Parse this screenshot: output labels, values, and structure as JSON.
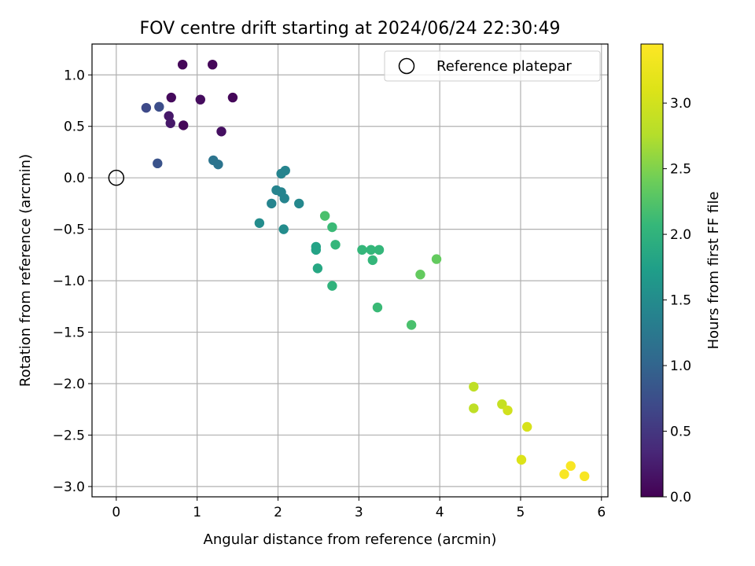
{
  "chart_data": {
    "type": "scatter",
    "title": "FOV centre drift starting at 2024/06/24 22:30:49",
    "xlabel": "Angular distance from reference (arcmin)",
    "ylabel": "Rotation from reference (arcmin)",
    "xlim": [
      -0.3,
      6.08
    ],
    "ylim": [
      -3.1,
      1.3
    ],
    "x_ticks": [
      0,
      1,
      2,
      3,
      4,
      5,
      6
    ],
    "x_tick_labels": [
      "0",
      "1",
      "2",
      "3",
      "4",
      "5",
      "6"
    ],
    "y_ticks": [
      1.0,
      0.5,
      0.0,
      -0.5,
      -1.0,
      -1.5,
      -2.0,
      -2.5,
      -3.0
    ],
    "y_tick_labels": [
      "1.0",
      "0.5",
      "0.0",
      "−0.5",
      "−1.0",
      "−1.5",
      "−2.0",
      "−2.5",
      "−3.0"
    ],
    "grid": true,
    "legend": {
      "location": "upper right",
      "entries": [
        "Reference platepar"
      ]
    },
    "reference_point": {
      "x": 0,
      "y": 0,
      "marker": "open-circle"
    },
    "colorbar": {
      "label": "Hours from first FF file",
      "range": [
        0,
        3.45
      ],
      "colormap": "viridis",
      "ticks": [
        0.0,
        0.5,
        1.0,
        1.5,
        2.0,
        2.5,
        3.0
      ],
      "tick_labels": [
        "0.0",
        "0.5",
        "1.0",
        "1.5",
        "2.0",
        "2.5",
        "3.0"
      ]
    },
    "series": [
      {
        "points": [
          {
            "x": 0.82,
            "y": 1.1,
            "c": 0.05
          },
          {
            "x": 1.19,
            "y": 1.1,
            "c": 0.05
          },
          {
            "x": 0.68,
            "y": 0.78,
            "c": 0.08
          },
          {
            "x": 1.04,
            "y": 0.76,
            "c": 0.1
          },
          {
            "x": 1.44,
            "y": 0.78,
            "c": 0.05
          },
          {
            "x": 0.37,
            "y": 0.68,
            "c": 0.7
          },
          {
            "x": 0.53,
            "y": 0.69,
            "c": 0.75
          },
          {
            "x": 0.65,
            "y": 0.6,
            "c": 0.2
          },
          {
            "x": 0.67,
            "y": 0.53,
            "c": 0.2
          },
          {
            "x": 0.83,
            "y": 0.51,
            "c": 0.05
          },
          {
            "x": 1.3,
            "y": 0.45,
            "c": 0.12
          },
          {
            "x": 0.51,
            "y": 0.14,
            "c": 0.8
          },
          {
            "x": 1.2,
            "y": 0.17,
            "c": 1.2
          },
          {
            "x": 1.26,
            "y": 0.13,
            "c": 1.2
          },
          {
            "x": 2.04,
            "y": 0.04,
            "c": 1.4
          },
          {
            "x": 2.09,
            "y": 0.07,
            "c": 1.4
          },
          {
            "x": 1.98,
            "y": -0.12,
            "c": 1.4
          },
          {
            "x": 2.04,
            "y": -0.14,
            "c": 1.4
          },
          {
            "x": 2.08,
            "y": -0.2,
            "c": 1.4
          },
          {
            "x": 1.92,
            "y": -0.25,
            "c": 1.4
          },
          {
            "x": 2.26,
            "y": -0.25,
            "c": 1.45
          },
          {
            "x": 1.77,
            "y": -0.44,
            "c": 1.5
          },
          {
            "x": 2.07,
            "y": -0.5,
            "c": 1.5
          },
          {
            "x": 2.58,
            "y": -0.37,
            "c": 2.2
          },
          {
            "x": 2.67,
            "y": -0.48,
            "c": 2.1
          },
          {
            "x": 2.71,
            "y": -0.65,
            "c": 2.05
          },
          {
            "x": 2.47,
            "y": -0.67,
            "c": 1.8
          },
          {
            "x": 2.47,
            "y": -0.7,
            "c": 1.8
          },
          {
            "x": 2.49,
            "y": -0.88,
            "c": 1.85
          },
          {
            "x": 2.67,
            "y": -1.05,
            "c": 2.0
          },
          {
            "x": 3.04,
            "y": -0.7,
            "c": 2.05
          },
          {
            "x": 3.15,
            "y": -0.7,
            "c": 2.05
          },
          {
            "x": 3.25,
            "y": -0.7,
            "c": 2.05
          },
          {
            "x": 3.17,
            "y": -0.8,
            "c": 2.05
          },
          {
            "x": 3.23,
            "y": -1.26,
            "c": 2.1
          },
          {
            "x": 3.65,
            "y": -1.43,
            "c": 2.2
          },
          {
            "x": 3.76,
            "y": -0.94,
            "c": 2.35
          },
          {
            "x": 3.96,
            "y": -0.79,
            "c": 2.35
          },
          {
            "x": 4.42,
            "y": -2.03,
            "c": 2.85
          },
          {
            "x": 4.42,
            "y": -2.24,
            "c": 2.85
          },
          {
            "x": 4.77,
            "y": -2.2,
            "c": 2.9
          },
          {
            "x": 4.84,
            "y": -2.26,
            "c": 3.0
          },
          {
            "x": 5.08,
            "y": -2.42,
            "c": 3.05
          },
          {
            "x": 5.01,
            "y": -2.74,
            "c": 3.1
          },
          {
            "x": 5.62,
            "y": -2.8,
            "c": 3.4
          },
          {
            "x": 5.54,
            "y": -2.88,
            "c": 3.4
          },
          {
            "x": 5.79,
            "y": -2.9,
            "c": 3.4
          }
        ]
      }
    ]
  }
}
